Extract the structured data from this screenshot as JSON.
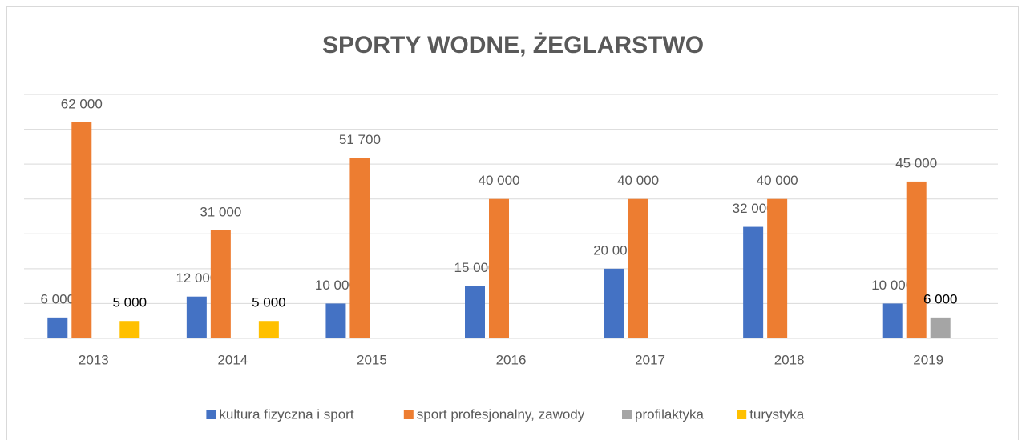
{
  "chart_data": {
    "type": "bar",
    "title": "SPORTY WODNE, ŻEGLARSTWO",
    "categories": [
      "2013",
      "2014",
      "2015",
      "2016",
      "2017",
      "2018",
      "2019"
    ],
    "series": [
      {
        "name": "kultura fizyczna i sport",
        "color": "#4472c4",
        "values": [
          6000,
          12000,
          10000,
          15000,
          20000,
          32000,
          10000
        ],
        "value_labels": [
          "6 000",
          "12 000",
          "10 000",
          "15 000",
          "20 000",
          "32 000",
          "10 000"
        ]
      },
      {
        "name": "sport profesjonalny, zawody",
        "color": "#ed7d31",
        "values": [
          62000,
          31000,
          51700,
          40000,
          40000,
          40000,
          45000
        ],
        "value_labels": [
          "62 000",
          "31 000",
          "51 700",
          "40 000",
          "40 000",
          "40 000",
          "45 000"
        ]
      },
      {
        "name": "profilaktyka",
        "color": "#a5a5a5",
        "values": [
          null,
          null,
          null,
          null,
          null,
          null,
          6000
        ],
        "value_labels": [
          null,
          null,
          null,
          null,
          null,
          null,
          "6 000"
        ]
      },
      {
        "name": "turystyka",
        "color": "#ffc000",
        "values": [
          5000,
          5000,
          null,
          null,
          null,
          null,
          null
        ],
        "value_labels": [
          "5 000",
          "5 000",
          null,
          null,
          null,
          null,
          null
        ]
      }
    ],
    "ylim": [
      0,
      70000
    ],
    "yticks": [
      0,
      10000,
      20000,
      30000,
      40000,
      50000,
      60000,
      70000
    ],
    "grid": true
  }
}
